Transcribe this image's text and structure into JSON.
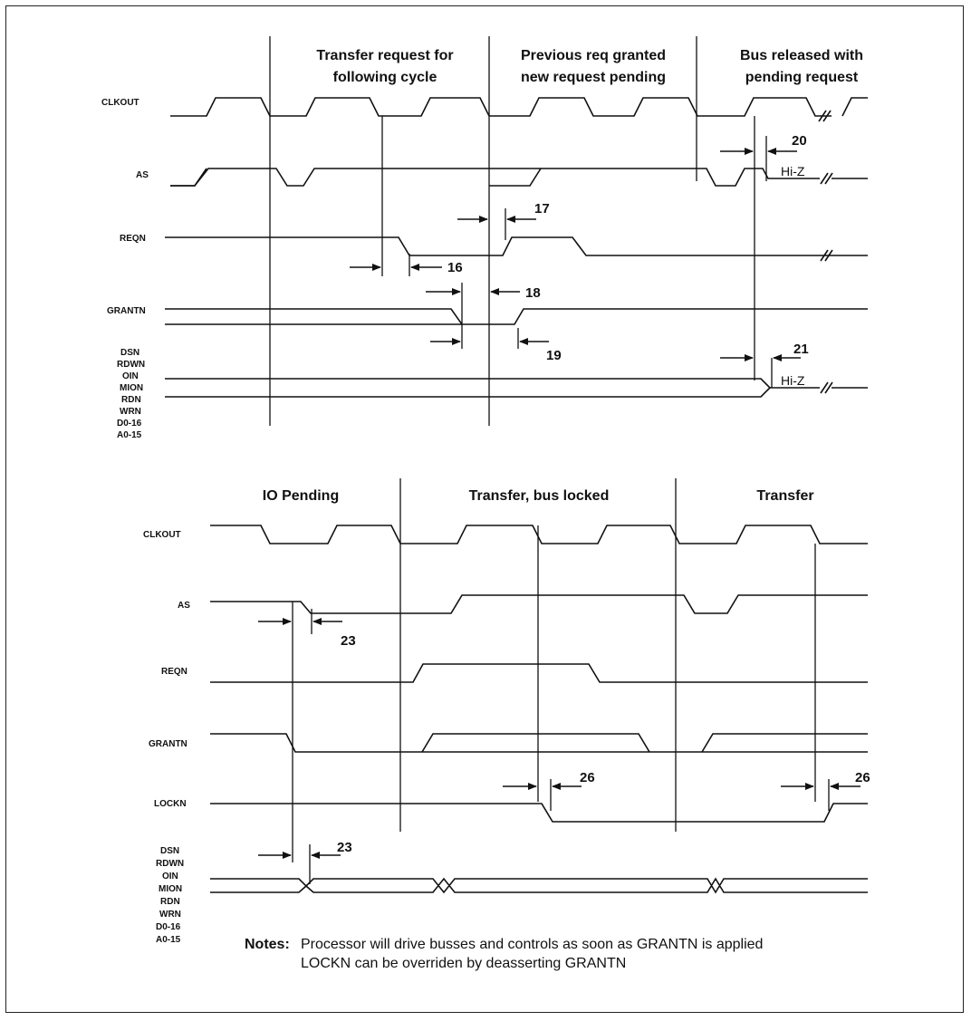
{
  "top": {
    "headers": [
      "Transfer request for",
      "following cycle",
      "Previous req granted",
      "new request pending",
      "Bus released with",
      "pending request"
    ],
    "signals": [
      "CLKOUT",
      "AS",
      "REQN",
      "GRANTN",
      "DSN",
      "RDWN",
      "OIN",
      "MION",
      "RDN",
      "WRN",
      "D0-16",
      "A0-15"
    ],
    "timing": [
      "20",
      "17",
      "16",
      "18",
      "19",
      "21"
    ],
    "hiz": [
      "Hi-Z",
      "Hi-Z"
    ]
  },
  "bottom": {
    "headers": [
      "IO Pending",
      "Transfer, bus locked",
      "Transfer"
    ],
    "signals": [
      "CLKOUT",
      "AS",
      "REQN",
      "GRANTN",
      "LOCKN",
      "DSN",
      "RDWN",
      "OIN",
      "MION",
      "RDN",
      "WRN",
      "D0-16",
      "A0-15"
    ],
    "timing": [
      "23",
      "26",
      "26",
      "23"
    ]
  },
  "notes": {
    "label": "Notes:",
    "lines": [
      "Processor will drive busses and controls as soon as GRANTN is applied",
      "LOCKN can be overriden by deasserting GRANTN"
    ]
  }
}
